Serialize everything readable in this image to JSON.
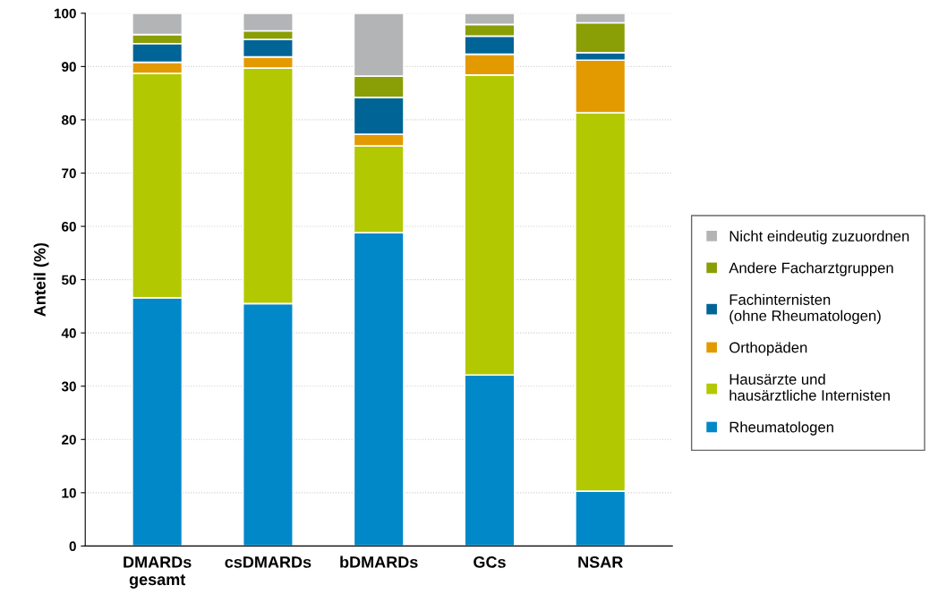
{
  "chart_data": {
    "type": "bar",
    "stacked": true,
    "ylabel": "Anteil (%)",
    "categories": [
      "DMARDs\ngesamt",
      "csDMARDs",
      "bDMARDs",
      "GCs",
      "NSAR"
    ],
    "series": [
      {
        "name": "Rheumatologen",
        "color": "#0088c8",
        "values": [
          46.6,
          45.5,
          58.8,
          32.1,
          10.3
        ]
      },
      {
        "name": "Hausärzte und\nhausärztliche Internisten",
        "color": "#b2c800",
        "values": [
          42.1,
          44.2,
          16.3,
          56.3,
          71.0
        ]
      },
      {
        "name": "Orthopäden",
        "color": "#e39a00",
        "values": [
          2.1,
          2.1,
          2.2,
          3.9,
          9.9
        ]
      },
      {
        "name": "Fachinternisten\n(ohne Rheumatologen)",
        "color": "#006496",
        "values": [
          3.5,
          3.3,
          6.9,
          3.4,
          1.4
        ]
      },
      {
        "name": "Andere Facharztgruppen",
        "color": "#8a9e05",
        "values": [
          1.7,
          1.6,
          4.0,
          2.2,
          5.6
        ]
      },
      {
        "name": "Nicht eindeutig zuzuordnen",
        "color": "#b3b4b6",
        "values": [
          4.0,
          3.3,
          11.8,
          2.1,
          1.8
        ]
      }
    ],
    "ylim": [
      0,
      100
    ],
    "yticks": [
      0,
      10,
      20,
      30,
      40,
      50,
      60,
      70,
      80,
      90,
      100
    ],
    "grid": "y",
    "legend": "right"
  }
}
